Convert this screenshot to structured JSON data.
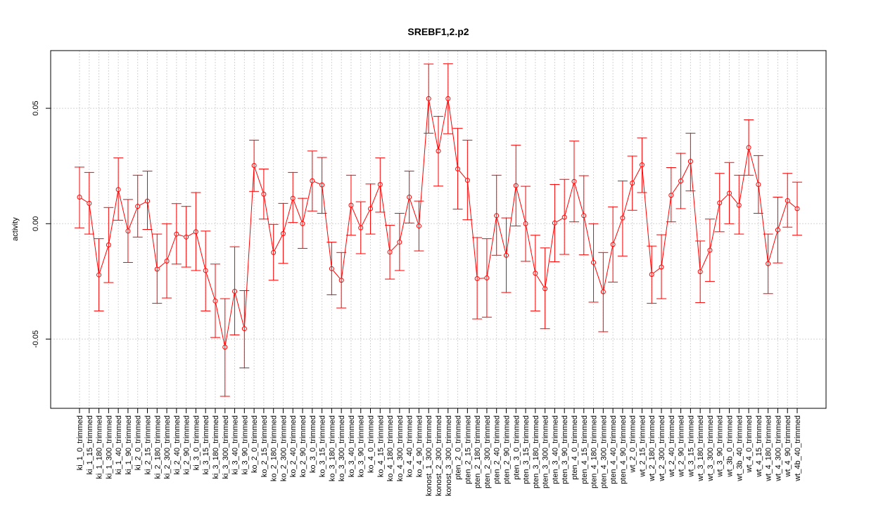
{
  "chart_data": {
    "type": "line",
    "title": "SREBF1,2.p2",
    "xlabel": "",
    "ylabel": "activity",
    "ylim": [
      -0.08,
      0.075
    ],
    "yticks": [
      -0.05,
      0.0,
      0.05
    ],
    "ytick_labels": [
      "-0.05",
      "0.00",
      "0.05"
    ],
    "grid": true,
    "line_color": "#ff0000",
    "grid_color": "#d3d3d3",
    "categories": [
      "ki_1_0_trimmed",
      "ki_1_15_trimmed",
      "ki_1_180_trimmed",
      "ki_1_300_trimmed",
      "ki_1_40_trimmed",
      "ki_1_90_trimmed",
      "ki_2_0_trimmed",
      "ki_2_15_trimmed",
      "ki_2_180_trimmed",
      "ki_2_300_trimmed",
      "ki_2_40_trimmed",
      "ki_2_90_trimmed",
      "ki_3_0_trimmed",
      "ki_3_15_trimmed",
      "ki_3_180_trimmed",
      "ki_3_300_trimmed",
      "ki_3_40_trimmed",
      "ki_3_90_trimmed",
      "ko_2_0_trimmed",
      "ko_2_15_trimmed",
      "ko_2_180_trimmed",
      "ko_2_300_trimmed",
      "ko_2_40_trimmed",
      "ko_2_90_trimmed",
      "ko_3_0_trimmed",
      "ko_3_15_trimmed",
      "ko_3_180_trimmed",
      "ko_3_300_trimmed",
      "ko_3_40_trimmed",
      "ko_3_90_trimmed",
      "ko_4_0_trimmed",
      "ko_4_15_trimmed",
      "ko_4_180_trimmed",
      "ko_4_300_trimmed",
      "ko_4_40_trimmed",
      "ko_4_90_trimmed",
      "konost_1_300_trimmed",
      "konost_2_300_trimmed",
      "konost_3_300_trimmed",
      "pten_2_0_trimmed",
      "pten_2_15_trimmed",
      "pten_2_180_trimmed",
      "pten_2_300_trimmed",
      "pten_2_40_trimmed",
      "pten_2_90_trimmed",
      "pten_3_0_trimmed",
      "pten_3_15_trimmed",
      "pten_3_180_trimmed",
      "pten_3_300_trimmed",
      "pten_3_40_trimmed",
      "pten_3_90_trimmed",
      "pten_4_0_trimmed",
      "pten_4_15_trimmed",
      "pten_4_180_trimmed",
      "pten_4_300_trimmed",
      "pten_4_40_trimmed",
      "pten_4_90_trimmed",
      "wt_2_0_trimmed",
      "wt_2_15_trimmed",
      "wt_2_180_trimmed",
      "wt_2_300_trimmed",
      "wt_2_40_trimmed",
      "wt_2_90_trimmed",
      "wt_3_15_trimmed",
      "wt_3_180_trimmed",
      "wt_3_300_trimmed",
      "wt_3_90_trimmed",
      "wt_3b_0_trimmed",
      "wt_3b_40_trimmed",
      "wt_4_0_trimmed",
      "wt_4_15_trimmed",
      "wt_4_180_trimmed",
      "wt_4_300_trimmed",
      "wt_4_90_trimmed",
      "wt_4b_40_trimmed"
    ],
    "series": [
      {
        "values": [
          0.0115,
          0.0088,
          -0.0222,
          -0.0092,
          0.0148,
          -0.0032,
          0.0075,
          0.0098,
          -0.0197,
          -0.0162,
          -0.0045,
          -0.0058,
          -0.0035,
          -0.0203,
          -0.0335,
          -0.0535,
          -0.0293,
          -0.0455,
          0.0252,
          0.0128,
          -0.0125,
          -0.0043,
          0.011,
          0.0,
          0.0186,
          0.0168,
          -0.0195,
          -0.0245,
          0.008,
          -0.0018,
          0.0065,
          0.017,
          -0.0123,
          -0.008,
          0.0115,
          -0.001,
          0.0542,
          0.0315,
          0.0542,
          0.0237,
          0.0188,
          -0.0238,
          -0.0235,
          0.0035,
          -0.0137,
          0.0165,
          0.0,
          -0.0215,
          -0.0282,
          0.0003,
          0.0028,
          0.0183,
          0.0035,
          -0.0168,
          -0.0295,
          -0.009,
          0.0025,
          0.0176,
          0.0255,
          -0.022,
          -0.0188,
          0.0123,
          0.0185,
          0.027,
          -0.0208,
          -0.0115,
          0.009,
          0.0132,
          0.008,
          0.033,
          0.017,
          -0.0173,
          -0.0027,
          0.01,
          0.0065
        ],
        "lower": [
          -0.0018,
          -0.0045,
          -0.0378,
          -0.0255,
          0.0015,
          -0.0168,
          -0.0058,
          -0.0025,
          -0.0345,
          -0.0322,
          -0.0175,
          -0.0188,
          -0.0203,
          -0.0378,
          -0.0493,
          -0.0748,
          -0.0482,
          -0.0625,
          0.014,
          0.002,
          -0.0245,
          -0.0172,
          0.0005,
          -0.0107,
          0.0055,
          0.0045,
          -0.0308,
          -0.0365,
          -0.005,
          -0.013,
          -0.0045,
          0.005,
          -0.024,
          -0.0203,
          0.0003,
          -0.0118,
          0.0392,
          0.0163,
          0.039,
          0.0063,
          0.0017,
          -0.0413,
          -0.0405,
          -0.0137,
          -0.0298,
          -0.001,
          -0.0163,
          -0.0378,
          -0.0455,
          -0.0165,
          -0.0133,
          0.0008,
          -0.0135,
          -0.034,
          -0.0468,
          -0.0253,
          -0.014,
          0.0058,
          0.0135,
          -0.0345,
          -0.0325,
          0.0008,
          0.0065,
          0.0142,
          -0.0342,
          -0.025,
          -0.0035,
          0.0,
          -0.0045,
          0.021,
          0.0045,
          -0.0303,
          -0.017,
          -0.0015,
          -0.005
        ],
        "upper": [
          0.0245,
          0.0222,
          -0.0065,
          0.007,
          0.0285,
          0.0105,
          0.021,
          0.0228,
          -0.0045,
          0.0,
          0.0087,
          0.0075,
          0.0135,
          -0.0032,
          -0.0175,
          -0.0325,
          -0.01,
          -0.029,
          0.0362,
          0.0237,
          -0.0003,
          0.0088,
          0.0222,
          0.011,
          0.0315,
          0.0287,
          -0.008,
          -0.0125,
          0.021,
          0.0095,
          0.0172,
          0.0285,
          -0.0007,
          0.0045,
          0.0228,
          0.0098,
          0.0692,
          0.0465,
          0.0693,
          0.0413,
          0.0362,
          -0.006,
          -0.0065,
          0.021,
          0.0025,
          0.034,
          0.0162,
          -0.005,
          -0.0105,
          0.017,
          0.0192,
          0.0358,
          0.0208,
          0.0,
          -0.0125,
          0.0073,
          0.0185,
          0.0293,
          0.0372,
          -0.0097,
          -0.0048,
          0.0243,
          0.0305,
          0.0392,
          -0.0075,
          0.002,
          0.0218,
          0.0265,
          0.021,
          0.045,
          0.0295,
          -0.0045,
          0.0115,
          0.0218,
          0.018
        ]
      }
    ]
  }
}
